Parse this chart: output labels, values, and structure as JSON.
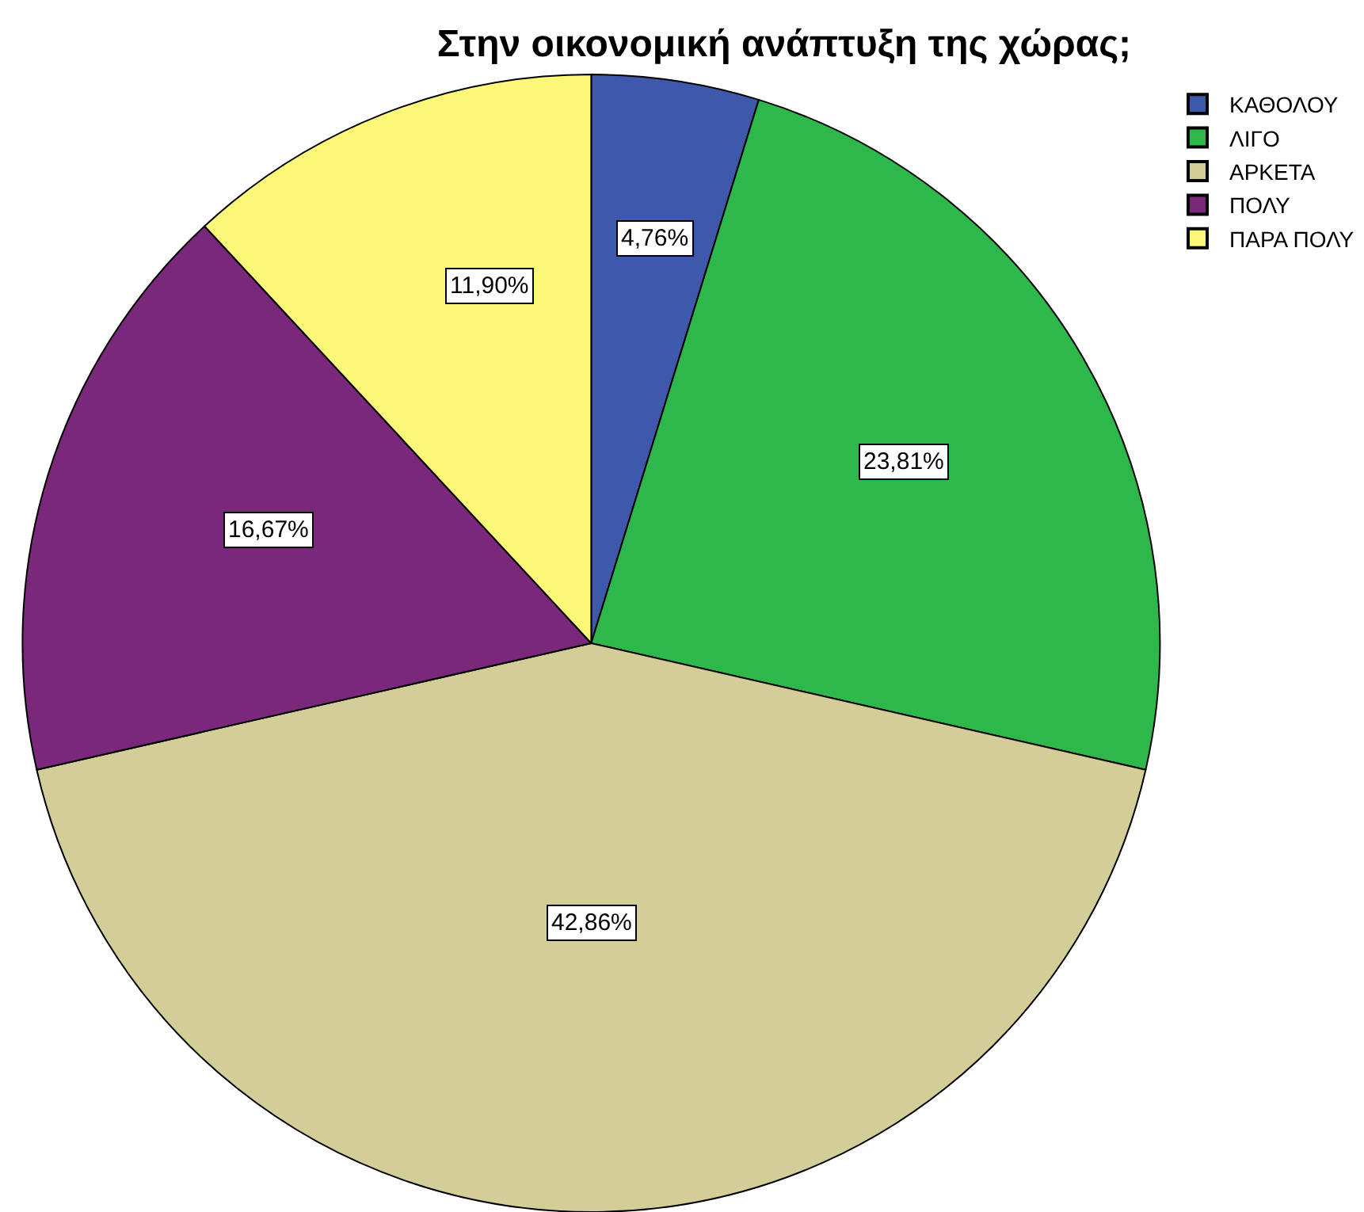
{
  "chart_data": {
    "type": "pie",
    "title": "Στην οικονομική ανάπτυξη της χώρας;",
    "categories": [
      "ΚΑΘΟΛΟΥ",
      "ΛΙΓΟ",
      "ΑΡΚΕΤΑ",
      "ΠΟΛΥ",
      "ΠΑΡΑ ΠΟΛΥ"
    ],
    "values": [
      4.76,
      23.81,
      42.86,
      16.67,
      11.9
    ],
    "colors": [
      "#3e58ac",
      "#2eb84b",
      "#d3ce97",
      "#79287a",
      "#fbf779"
    ],
    "value_labels": [
      "4,76%",
      "23,81%",
      "42,86%",
      "16,67%",
      "11,90%"
    ],
    "legend": "top right"
  }
}
